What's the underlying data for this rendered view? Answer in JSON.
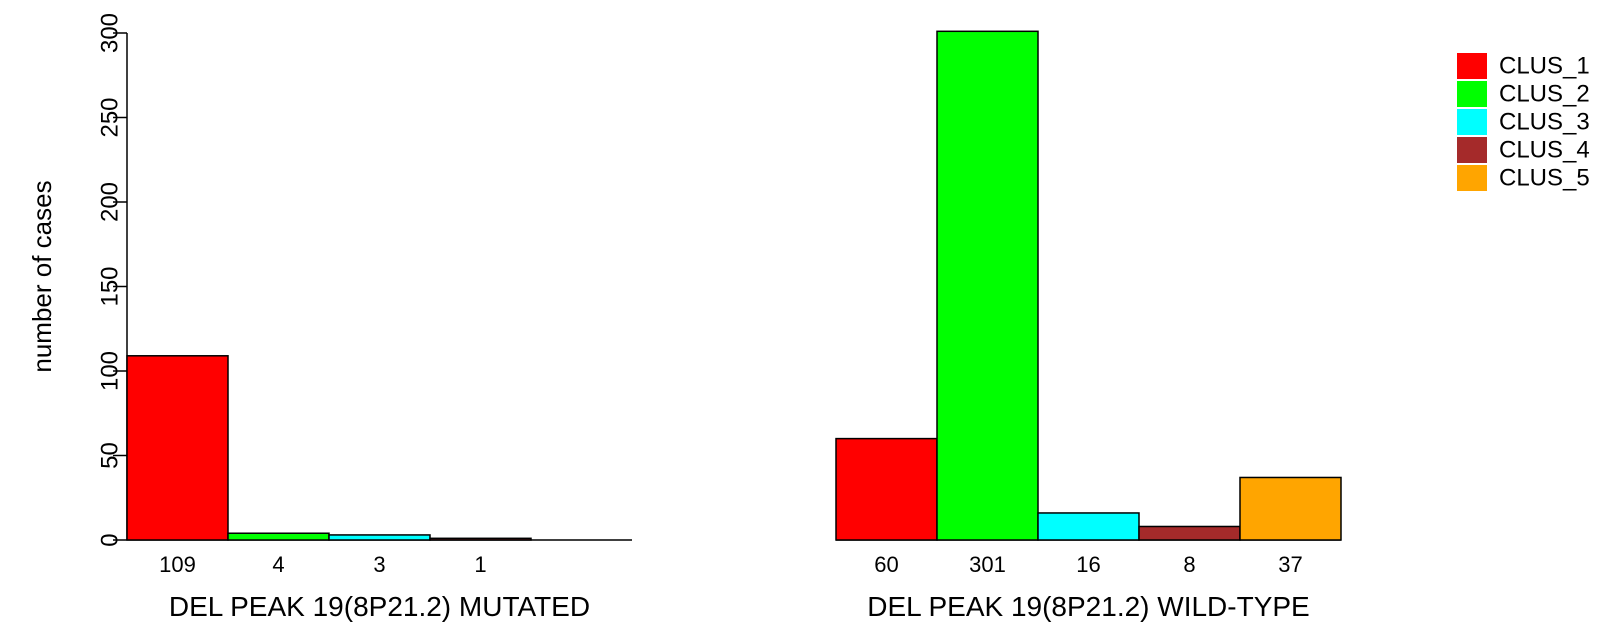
{
  "chart_data": {
    "type": "bar",
    "ylabel": "number of cases",
    "ylim": [
      0,
      300
    ],
    "yticks": [
      0,
      50,
      100,
      150,
      200,
      250,
      300
    ],
    "series_names": [
      "CLUS_1",
      "CLUS_2",
      "CLUS_3",
      "CLUS_4",
      "CLUS_5"
    ],
    "colors": [
      "#ff0000",
      "#00ff00",
      "#00ffff",
      "#a52a2a",
      "#ffa500"
    ],
    "groups": [
      {
        "label": "DEL PEAK 19(8P21.2) MUTATED",
        "values": [
          109,
          4,
          3,
          1,
          0
        ],
        "value_labels": [
          "109",
          "4",
          "3",
          "1",
          ""
        ]
      },
      {
        "label": "DEL PEAK 19(8P21.2) WILD-TYPE",
        "values": [
          60,
          301,
          16,
          8,
          37
        ],
        "value_labels": [
          "60",
          "301",
          "16",
          "8",
          "37"
        ]
      }
    ],
    "legend": {
      "position": "top-right",
      "entries": [
        "CLUS_1",
        "CLUS_2",
        "CLUS_3",
        "CLUS_4",
        "CLUS_5"
      ]
    },
    "grid": false
  }
}
